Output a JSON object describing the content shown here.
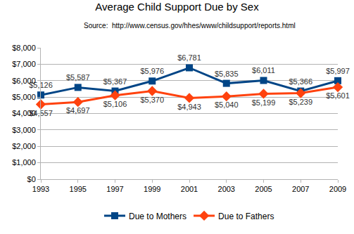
{
  "chart_data": {
    "type": "line",
    "title": "Average Child Support Due by Sex",
    "subtitle": "Source:  http://www.census.gov/hhes/www/childsupport/reports.html",
    "x": [
      1993,
      1995,
      1997,
      1999,
      2001,
      2003,
      2005,
      2007,
      2009
    ],
    "xlim": [
      1993,
      2009
    ],
    "xticks": [
      1993,
      1995,
      1997,
      1999,
      2001,
      2003,
      2005,
      2007,
      2009
    ],
    "ylim": [
      0,
      8000
    ],
    "yticks": [
      {
        "value": 0,
        "label": "$0"
      },
      {
        "value": 1000,
        "label": "$1,000"
      },
      {
        "value": 2000,
        "label": "$2,000"
      },
      {
        "value": 3000,
        "label": "$3,000"
      },
      {
        "value": 4000,
        "label": "$4,000"
      },
      {
        "value": 5000,
        "label": "$5,000"
      },
      {
        "value": 6000,
        "label": "$6,000"
      },
      {
        "value": 7000,
        "label": "$7,000"
      },
      {
        "value": 8000,
        "label": "$8,000"
      }
    ],
    "grid": true,
    "legend": "bottom",
    "data_labels": true,
    "series": [
      {
        "name": "Due to Mothers",
        "color": "#004586",
        "marker": "square",
        "line_style": "solid",
        "values": [
          5126,
          5587,
          5367,
          5976,
          6781,
          5835,
          6011,
          5366,
          5997
        ],
        "value_labels": [
          "$5,126",
          "$5,587",
          "$5,367",
          "$5,976",
          "$6,781",
          "$5,835",
          "$6,011",
          "$5,366",
          "$5,997"
        ]
      },
      {
        "name": "Due to Fathers",
        "color": "#ff420e",
        "marker": "diamond",
        "line_style": "solid",
        "values": [
          4557,
          4697,
          5106,
          5370,
          4943,
          5040,
          5199,
          5239,
          5601
        ],
        "value_labels": [
          "$4,557",
          "$4,697",
          "$5,106",
          "$5,370",
          "$4,943",
          "$5,040",
          "$5,199",
          "$5,239",
          "$5,601"
        ]
      }
    ]
  }
}
